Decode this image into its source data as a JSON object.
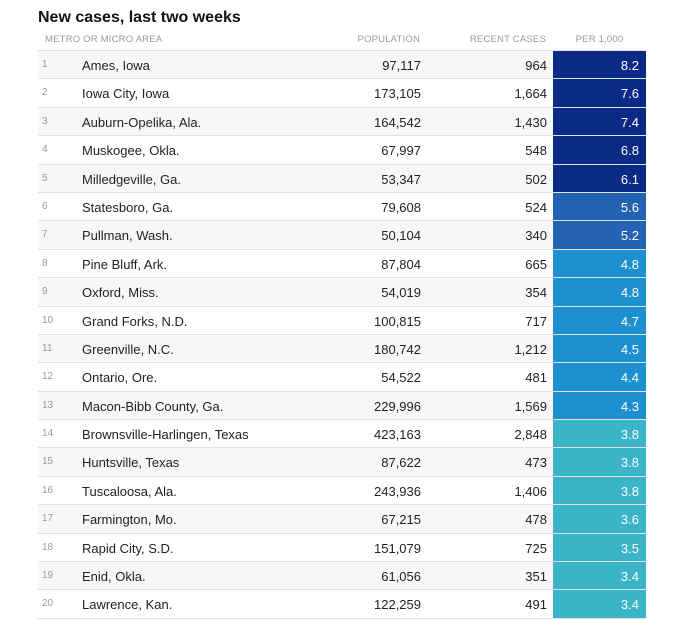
{
  "title": "New cases, last two weeks",
  "columns": {
    "area": "METRO OR MICRO AREA",
    "population": "POPULATION",
    "recent_cases": "RECENT CASES",
    "per_1000": "PER 1,000"
  },
  "colors": {
    "scale": [
      "#0b2a86",
      "#2463b3",
      "#1e90cf",
      "#3ab4c6"
    ]
  },
  "chart_data": {
    "type": "table",
    "title": "New cases, last two weeks",
    "columns": [
      "METRO OR MICRO AREA",
      "POPULATION",
      "RECENT CASES",
      "PER 1,000"
    ],
    "rows": [
      {
        "rank": "1",
        "area": "Ames, Iowa",
        "population": "97,117",
        "cases": "964",
        "per": "8.2",
        "per_value": 8.2
      },
      {
        "rank": "2",
        "area": "Iowa City, Iowa",
        "population": "173,105",
        "cases": "1,664",
        "per": "7.6",
        "per_value": 7.6
      },
      {
        "rank": "3",
        "area": "Auburn-Opelika, Ala.",
        "population": "164,542",
        "cases": "1,430",
        "per": "7.4",
        "per_value": 7.4
      },
      {
        "rank": "4",
        "area": "Muskogee, Okla.",
        "population": "67,997",
        "cases": "548",
        "per": "6.8",
        "per_value": 6.8
      },
      {
        "rank": "5",
        "area": "Milledgeville, Ga.",
        "population": "53,347",
        "cases": "502",
        "per": "6.1",
        "per_value": 6.1
      },
      {
        "rank": "6",
        "area": "Statesboro, Ga.",
        "population": "79,608",
        "cases": "524",
        "per": "5.6",
        "per_value": 5.6
      },
      {
        "rank": "7",
        "area": "Pullman, Wash.",
        "population": "50,104",
        "cases": "340",
        "per": "5.2",
        "per_value": 5.2
      },
      {
        "rank": "8",
        "area": "Pine Bluff, Ark.",
        "population": "87,804",
        "cases": "665",
        "per": "4.8",
        "per_value": 4.8
      },
      {
        "rank": "9",
        "area": "Oxford, Miss.",
        "population": "54,019",
        "cases": "354",
        "per": "4.8",
        "per_value": 4.8
      },
      {
        "rank": "10",
        "area": "Grand Forks, N.D.",
        "population": "100,815",
        "cases": "717",
        "per": "4.7",
        "per_value": 4.7
      },
      {
        "rank": "11",
        "area": "Greenville, N.C.",
        "population": "180,742",
        "cases": "1,212",
        "per": "4.5",
        "per_value": 4.5
      },
      {
        "rank": "12",
        "area": "Ontario, Ore.",
        "population": "54,522",
        "cases": "481",
        "per": "4.4",
        "per_value": 4.4
      },
      {
        "rank": "13",
        "area": "Macon-Bibb County, Ga.",
        "population": "229,996",
        "cases": "1,569",
        "per": "4.3",
        "per_value": 4.3
      },
      {
        "rank": "14",
        "area": "Brownsville-Harlingen, Texas",
        "population": "423,163",
        "cases": "2,848",
        "per": "3.8",
        "per_value": 3.8
      },
      {
        "rank": "15",
        "area": "Huntsville, Texas",
        "population": "87,622",
        "cases": "473",
        "per": "3.8",
        "per_value": 3.8
      },
      {
        "rank": "16",
        "area": "Tuscaloosa, Ala.",
        "population": "243,936",
        "cases": "1,406",
        "per": "3.8",
        "per_value": 3.8
      },
      {
        "rank": "17",
        "area": "Farmington, Mo.",
        "population": "67,215",
        "cases": "478",
        "per": "3.6",
        "per_value": 3.6
      },
      {
        "rank": "18",
        "area": "Rapid City, S.D.",
        "population": "151,079",
        "cases": "725",
        "per": "3.5",
        "per_value": 3.5
      },
      {
        "rank": "19",
        "area": "Enid, Okla.",
        "population": "61,056",
        "cases": "351",
        "per": "3.4",
        "per_value": 3.4
      },
      {
        "rank": "20",
        "area": "Lawrence, Kan.",
        "population": "122,259",
        "cases": "491",
        "per": "3.4",
        "per_value": 3.4
      }
    ]
  }
}
